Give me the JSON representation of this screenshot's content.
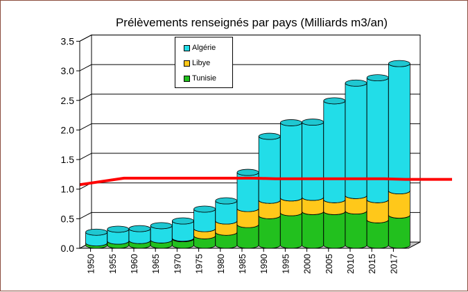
{
  "chart_data": {
    "type": "bar",
    "stacked": true,
    "title": "Prélèvements renseignés par pays (Milliards m3/an)",
    "categories": [
      "1950",
      "1955",
      "1960",
      "1965",
      "1970",
      "1975",
      "1980",
      "1985",
      "1990",
      "1995",
      "2000",
      "2005",
      "2010",
      "2015",
      "2017"
    ],
    "series": [
      {
        "name": "Tunisie",
        "color": "#22c01e",
        "values": [
          0.04,
          0.07,
          0.08,
          0.09,
          0.11,
          0.16,
          0.22,
          0.35,
          0.5,
          0.55,
          0.57,
          0.57,
          0.58,
          0.43,
          0.51
        ]
      },
      {
        "name": "Libye",
        "color": "#ffc81a",
        "values": [
          0.0,
          0.0,
          0.0,
          0.0,
          0.01,
          0.12,
          0.19,
          0.27,
          0.26,
          0.25,
          0.24,
          0.2,
          0.26,
          0.34,
          0.41
        ]
      },
      {
        "name": "Algérie",
        "color": "#22dde8",
        "values": [
          0.18,
          0.2,
          0.2,
          0.24,
          0.29,
          0.33,
          0.34,
          0.61,
          1.08,
          1.27,
          1.27,
          1.67,
          1.9,
          2.06,
          2.15
        ]
      }
    ],
    "reference_line": {
      "color": "#ff0000",
      "values": [
        0.97,
        1.08,
        1.08,
        1.08,
        1.08,
        1.08,
        1.08,
        1.08,
        1.07,
        1.07,
        1.07,
        1.07,
        1.07,
        1.07,
        1.06
      ]
    },
    "ylim": [
      0,
      3.5
    ],
    "yticks": [
      "0.0",
      "0.5",
      "1.0",
      "1.5",
      "2.0",
      "2.5",
      "3.0",
      "3.5"
    ],
    "grid": true,
    "legend_position": "top-center",
    "legend_order": [
      "Algérie",
      "Libye",
      "Tunisie"
    ]
  }
}
